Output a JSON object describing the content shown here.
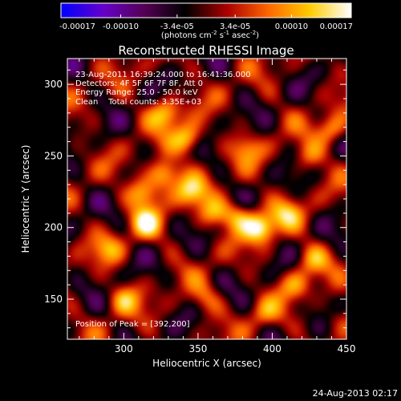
{
  "chart_data": {
    "type": "heatmap",
    "title": "Reconstructed RHESSI Image",
    "xlabel": "Heliocentric X (arcsec)",
    "ylabel": "Heliocentric Y (arcsec)",
    "xlim": [
      262,
      450
    ],
    "ylim": [
      122,
      318
    ],
    "x_ticks": [
      300,
      350,
      400,
      450
    ],
    "y_ticks": [
      150,
      200,
      250,
      300
    ],
    "colorbar": {
      "ticks": [
        "-0.00017",
        "-0.00010",
        "-3.4e-05",
        "3.4e-05",
        "0.00010",
        "0.00017"
      ],
      "tick_values": [
        -0.00017,
        -0.0001,
        -3.4e-05,
        3.4e-05,
        0.0001,
        0.00017
      ],
      "range": [
        -0.00017,
        0.00017
      ],
      "unit_label": "(photons cm-2 s-1 asec-2)",
      "colors": [
        "#0000ff",
        "#6600cc",
        "#550055",
        "#000000",
        "#aa0000",
        "#ff6600",
        "#ffcc00",
        "#ffffff"
      ]
    },
    "annotations": [
      "23-Aug-2011 16:39:24.000 to 16:41:36.000",
      "Detectors: 4F 5F 6F 7F 8F, Att 0",
      "Energy Range: 25.0 - 50.0 keV",
      "Clean    Total counts: 3.35E+03",
      "Position of Peak = [392,200]"
    ],
    "peak": {
      "x": 392,
      "y": 200
    },
    "sources": [
      {
        "x": 328,
        "y": 280,
        "value": 0.00012
      },
      {
        "x": 343,
        "y": 262,
        "value": 0.00014
      },
      {
        "x": 327,
        "y": 237,
        "value": 0.00015
      },
      {
        "x": 313,
        "y": 224,
        "value": 0.00012
      },
      {
        "x": 315,
        "y": 203,
        "value": 0.00012
      },
      {
        "x": 345,
        "y": 225,
        "value": 0.00011
      },
      {
        "x": 360,
        "y": 210,
        "value": 0.0001
      },
      {
        "x": 392,
        "y": 200,
        "value": 0.00017
      },
      {
        "x": 377,
        "y": 208,
        "value": 0.00011
      },
      {
        "x": 410,
        "y": 210,
        "value": 9e-05
      },
      {
        "x": 440,
        "y": 268,
        "value": 0.00011
      },
      {
        "x": 425,
        "y": 250,
        "value": 8e-05
      },
      {
        "x": 427,
        "y": 178,
        "value": 9e-05
      },
      {
        "x": 415,
        "y": 160,
        "value": 8e-05
      },
      {
        "x": 300,
        "y": 150,
        "value": 9e-05
      },
      {
        "x": 290,
        "y": 185,
        "value": 8e-05
      },
      {
        "x": 355,
        "y": 150,
        "value": 7e-05
      },
      {
        "x": 383,
        "y": 255,
        "value": 7e-05
      },
      {
        "x": 395,
        "y": 140,
        "value": 7e-05
      },
      {
        "x": 445,
        "y": 135,
        "value": 6e-05
      }
    ]
  },
  "footer": {
    "timestamp": "24-Aug-2013 02:17"
  }
}
